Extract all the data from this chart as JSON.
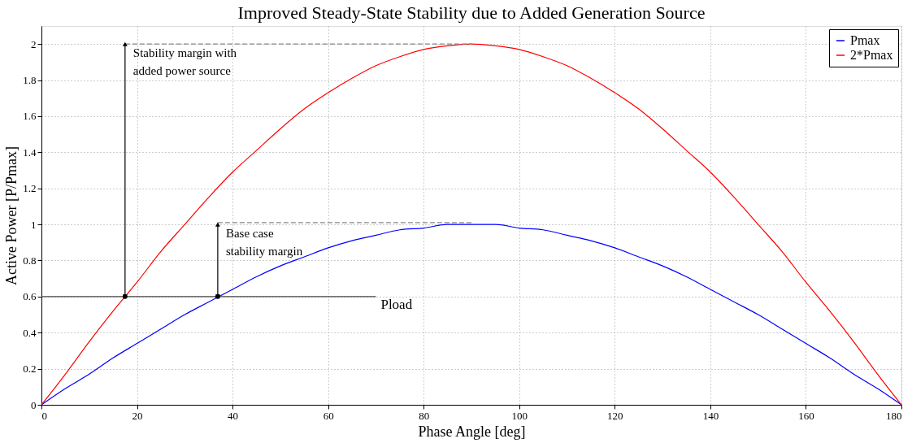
{
  "chart_data": {
    "type": "line",
    "title": "Improved Steady-State Stability due to Added Generation Source",
    "xlabel": "Phase Angle [deg]",
    "ylabel": "Active Power [P/Pmax]",
    "x": [
      0,
      5,
      10,
      15,
      20,
      25,
      30,
      35,
      40,
      45,
      50,
      55,
      60,
      65,
      70,
      75,
      80,
      85,
      90,
      95,
      100,
      105,
      110,
      115,
      120,
      125,
      130,
      135,
      140,
      145,
      150,
      155,
      160,
      165,
      170,
      175,
      180
    ],
    "series": [
      {
        "name": "Pmax",
        "color": "#0000ff",
        "values": [
          0,
          0.09,
          0.17,
          0.26,
          0.34,
          0.42,
          0.5,
          0.57,
          0.64,
          0.71,
          0.77,
          0.82,
          0.87,
          0.91,
          0.94,
          0.97,
          0.98,
          1.0,
          1,
          1.0,
          0.98,
          0.97,
          0.94,
          0.91,
          0.87,
          0.82,
          0.77,
          0.71,
          0.64,
          0.57,
          0.5,
          0.42,
          0.34,
          0.26,
          0.17,
          0.09,
          0
        ]
      },
      {
        "name": "2*Pmax",
        "color": "#ff0000",
        "values": [
          0,
          0.17,
          0.35,
          0.52,
          0.68,
          0.85,
          1,
          1.15,
          1.29,
          1.41,
          1.53,
          1.64,
          1.73,
          1.81,
          1.88,
          1.93,
          1.97,
          1.99,
          2,
          1.99,
          1.97,
          1.93,
          1.88,
          1.81,
          1.73,
          1.64,
          1.53,
          1.41,
          1.29,
          1.15,
          1,
          0.85,
          0.68,
          0.52,
          0.35,
          0.17,
          0
        ]
      },
      {
        "name": "Pload",
        "color": "#444444",
        "x": [
          0,
          70
        ],
        "values": [
          0.6,
          0.6
        ]
      },
      {
        "color": "#888888",
        "x": [
          17.5,
          90
        ],
        "values": [
          2,
          2
        ],
        "line_style": "dashed"
      },
      {
        "color": "#888888",
        "x": [
          36.9,
          90
        ],
        "values": [
          1.01,
          1.01
        ],
        "line_style": "dashed"
      },
      {
        "color": "#000000",
        "x": [
          17.5,
          17.5
        ],
        "values": [
          0.6,
          2
        ],
        "marker": "triangle"
      },
      {
        "color": "#000000",
        "x": [
          36.9,
          36.9
        ],
        "values": [
          0.6,
          1
        ],
        "marker": "triangle"
      },
      {
        "type": "scatter",
        "color": "#000000",
        "x": [
          17.5,
          36.9
        ],
        "values": [
          0.6,
          0.6
        ]
      }
    ],
    "annotations": [
      "Stability margin with added power source",
      "Base case stability margin"
    ],
    "xlim": [
      0,
      180
    ],
    "xticks": [
      0,
      20,
      40,
      60,
      80,
      100,
      120,
      140,
      160,
      180
    ],
    "ylim": [
      0,
      2.1
    ],
    "yticks": [
      0,
      0.2,
      0.4,
      0.6,
      0.8,
      1,
      1.2,
      1.4,
      1.6,
      1.8,
      2
    ],
    "grid": true,
    "legend": "top right"
  }
}
